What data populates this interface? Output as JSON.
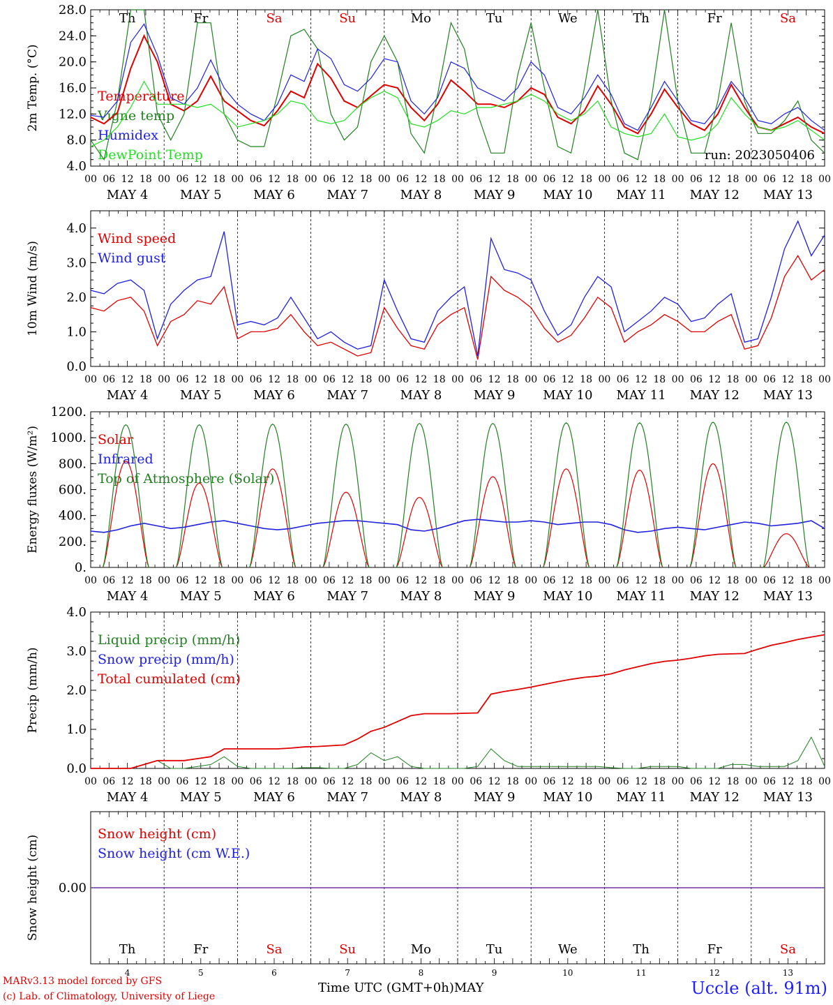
{
  "chart_data": [
    {
      "type": "line",
      "ylabel": "2m Temp. (°C)",
      "ylim": [
        4,
        28
      ],
      "yticks": [
        "4.0",
        "8.0",
        "12.0",
        "16.0",
        "20.0",
        "24.0",
        "28.0"
      ],
      "run_label": "run: 2023050406",
      "series": [
        {
          "name": "Temperature",
          "color": "#e00000",
          "values": [
            11.5,
            10.5,
            12.2,
            19.0,
            24.0,
            20.0,
            13.5,
            12.5,
            14.0,
            17.8,
            14.0,
            12.5,
            11.0,
            10.2,
            12.5,
            15.5,
            14.5,
            19.7,
            17.5,
            14.0,
            13.0,
            14.8,
            16.5,
            16.0,
            13.0,
            11.0,
            13.5,
            17.2,
            15.5,
            13.5,
            13.5,
            13.0,
            14.0,
            16.0,
            15.0,
            11.5,
            10.5,
            12.5,
            16.3,
            13.5,
            10.0,
            9.0,
            12.0,
            15.8,
            13.0,
            10.5,
            9.5,
            12.0,
            16.5,
            13.0,
            10.0,
            9.5,
            10.5,
            11.5,
            10.0,
            9.0
          ]
        },
        {
          "name": "Vigne temp",
          "color": "#208020",
          "values": [
            8.0,
            5.0,
            14.0,
            28.0,
            28.0,
            12.0,
            8.0,
            12.0,
            26.0,
            26.0,
            12.0,
            8.0,
            7.0,
            7.0,
            15.0,
            24.0,
            25.0,
            22.0,
            12.0,
            8.0,
            10.0,
            20.0,
            24.0,
            20.0,
            9.0,
            6.0,
            15.0,
            26.0,
            22.0,
            12.0,
            6.0,
            6.0,
            18.0,
            26.0,
            16.0,
            7.0,
            6.0,
            16.0,
            28.0,
            14.0,
            6.0,
            5.0,
            14.0,
            28.0,
            14.0,
            6.0,
            6.0,
            14.0,
            26.0,
            14.0,
            9.0,
            9.0,
            11.0,
            14.0,
            8.0,
            6.0
          ]
        },
        {
          "name": "Humidex",
          "color": "#2020e0",
          "values": [
            11.8,
            11.5,
            14.0,
            23.0,
            25.8,
            21.0,
            14.5,
            13.5,
            16.0,
            20.3,
            16.0,
            13.5,
            12.0,
            11.0,
            13.5,
            18.0,
            17.0,
            22.0,
            20.5,
            16.5,
            15.5,
            17.5,
            20.5,
            20.0,
            14.0,
            12.0,
            14.5,
            20.0,
            19.0,
            16.0,
            15.0,
            14.0,
            16.0,
            20.0,
            18.0,
            13.0,
            12.0,
            14.5,
            18.0,
            15.0,
            10.5,
            9.5,
            13.0,
            17.0,
            14.0,
            11.0,
            10.5,
            13.0,
            17.0,
            14.5,
            11.0,
            10.5,
            12.0,
            13.0,
            11.0,
            9.5
          ]
        },
        {
          "name": "DewPoint Temp",
          "color": "#20e020",
          "values": [
            7.0,
            8.0,
            10.0,
            13.0,
            17.0,
            13.5,
            13.5,
            13.5,
            13.0,
            13.5,
            12.0,
            10.0,
            10.5,
            11.0,
            12.0,
            14.0,
            13.5,
            11.0,
            10.5,
            11.0,
            13.0,
            14.5,
            15.5,
            14.5,
            10.5,
            10.0,
            11.0,
            12.5,
            12.0,
            13.0,
            13.0,
            13.5,
            14.0,
            15.0,
            14.0,
            12.0,
            11.0,
            12.0,
            14.0,
            10.0,
            9.0,
            8.5,
            9.0,
            12.0,
            8.5,
            8.0,
            8.5,
            10.5,
            14.5,
            12.0,
            10.0,
            9.5,
            10.0,
            11.0,
            9.5,
            8.0
          ]
        }
      ]
    },
    {
      "type": "line",
      "ylabel": "10m Wind (m/s)",
      "ylim": [
        0,
        4.5
      ],
      "yticks": [
        "0.0",
        "1.0",
        "2.0",
        "3.0",
        "4.0"
      ],
      "series": [
        {
          "name": "Wind speed",
          "color": "#e00000",
          "values": [
            1.7,
            1.6,
            1.9,
            2.0,
            1.6,
            0.6,
            1.3,
            1.5,
            1.9,
            1.8,
            2.3,
            0.8,
            1.0,
            1.0,
            1.1,
            1.5,
            1.0,
            0.6,
            0.7,
            0.5,
            0.3,
            0.4,
            1.7,
            1.1,
            0.6,
            0.5,
            1.2,
            1.5,
            1.7,
            0.2,
            2.6,
            2.2,
            2.0,
            1.7,
            1.1,
            0.7,
            0.9,
            1.4,
            2.0,
            1.7,
            0.7,
            1.0,
            1.2,
            1.5,
            1.3,
            1.0,
            1.0,
            1.3,
            1.5,
            0.5,
            0.6,
            1.4,
            2.6,
            3.2,
            2.5,
            2.8
          ]
        },
        {
          "name": "Wind gust",
          "color": "#2020e0",
          "values": [
            2.2,
            2.1,
            2.4,
            2.5,
            2.2,
            0.8,
            1.8,
            2.2,
            2.5,
            2.6,
            3.9,
            1.2,
            1.3,
            1.2,
            1.4,
            2.0,
            1.4,
            0.8,
            1.0,
            0.7,
            0.5,
            0.6,
            2.5,
            1.6,
            0.8,
            0.7,
            1.6,
            2.0,
            2.3,
            0.3,
            3.7,
            2.8,
            2.7,
            2.5,
            1.6,
            0.9,
            1.2,
            2.0,
            2.6,
            2.3,
            1.0,
            1.3,
            1.6,
            2.0,
            1.8,
            1.3,
            1.4,
            1.8,
            2.1,
            0.7,
            0.8,
            2.0,
            3.4,
            4.2,
            3.2,
            3.8
          ]
        }
      ]
    },
    {
      "type": "line",
      "ylabel": "Energy fluxes (W/m²)",
      "ylim": [
        0,
        1200
      ],
      "yticks": [
        "0.",
        "200.",
        "400.",
        "600.",
        "800.",
        "1000.",
        "1200."
      ],
      "series": [
        {
          "name": "Solar",
          "color": "#e00000",
          "peaks": [
            820,
            650,
            760,
            580,
            540,
            700,
            760,
            750,
            800,
            260
          ]
        },
        {
          "name": "Infrared",
          "color": "#2020e0",
          "values": [
            280,
            270,
            290,
            320,
            340,
            320,
            300,
            310,
            330,
            350,
            360,
            340,
            320,
            300,
            290,
            300,
            320,
            340,
            350,
            360,
            360,
            350,
            340,
            330,
            290,
            280,
            300,
            330,
            360,
            370,
            360,
            350,
            350,
            360,
            350,
            330,
            340,
            350,
            350,
            330,
            290,
            270,
            280,
            300,
            310,
            300,
            290,
            310,
            330,
            350,
            340,
            320,
            330,
            340,
            360,
            300
          ]
        },
        {
          "name": "Top of Atmosphere (Solar)",
          "color": "#208020",
          "peaks": [
            1100,
            1100,
            1105,
            1105,
            1110,
            1110,
            1115,
            1115,
            1120,
            1120
          ]
        }
      ]
    },
    {
      "type": "line",
      "ylabel": "Precip (mm/h)",
      "ylim": [
        0,
        4
      ],
      "yticks": [
        "0.0",
        "1.0",
        "2.0",
        "3.0",
        "4.0"
      ],
      "series": [
        {
          "name": "Liquid precip (mm/h)",
          "color": "#208020",
          "values": [
            0,
            0,
            0,
            0,
            0.1,
            0.2,
            0,
            0,
            0.05,
            0.1,
            0.3,
            0.05,
            0,
            0,
            0,
            0,
            0.02,
            0.02,
            0,
            0,
            0.1,
            0.4,
            0.2,
            0.3,
            0.05,
            0,
            0,
            0,
            0,
            0.05,
            0.5,
            0.2,
            0.05,
            0.05,
            0.05,
            0.05,
            0.05,
            0.05,
            0.05,
            0.02,
            0,
            0,
            0.05,
            0.05,
            0.05,
            0,
            0,
            0,
            0.1,
            0.1,
            0.05,
            0.05,
            0.05,
            0.2,
            0.8,
            0.05
          ]
        },
        {
          "name": "Snow precip (mm/h)",
          "color": "#2020e0",
          "values": []
        },
        {
          "name": "Total cumulated (cm)",
          "color": "#e00000",
          "values": [
            0,
            0,
            0,
            0,
            0.1,
            0.2,
            0.2,
            0.2,
            0.25,
            0.3,
            0.5,
            0.5,
            0.5,
            0.5,
            0.5,
            0.52,
            0.55,
            0.56,
            0.58,
            0.6,
            0.75,
            0.95,
            1.05,
            1.2,
            1.35,
            1.4,
            1.4,
            1.4,
            1.41,
            1.42,
            1.9,
            1.97,
            2.02,
            2.08,
            2.15,
            2.22,
            2.28,
            2.33,
            2.36,
            2.42,
            2.52,
            2.6,
            2.68,
            2.74,
            2.77,
            2.82,
            2.88,
            2.92,
            2.93,
            2.94,
            3.05,
            3.15,
            3.22,
            3.3,
            3.36,
            3.42
          ]
        }
      ]
    },
    {
      "type": "line",
      "ylabel": "Snow height (cm)",
      "yticks": [
        "0.00"
      ],
      "series": [
        {
          "name": "Snow height (cm)",
          "color": "#e00000",
          "values": [
            0,
            0
          ]
        },
        {
          "name": "Snow height (cm W.E.)",
          "color": "#2020e0",
          "values": [
            0,
            0
          ]
        }
      ]
    }
  ],
  "axes": {
    "hour_ticks": [
      "00",
      "06",
      "12",
      "18"
    ],
    "end_tick": "00",
    "dates": [
      "MAY  4",
      "MAY  5",
      "MAY  6",
      "MAY  7",
      "MAY  8",
      "MAY  9",
      "MAY 10",
      "MAY 11",
      "MAY 12",
      "MAY 13"
    ],
    "weekdays": [
      "Th",
      "Fr",
      "Sa",
      "Su",
      "Mo",
      "Tu",
      "We",
      "Th",
      "Fr",
      "Sa"
    ],
    "weekday_colors": [
      "#000000",
      "#000000",
      "#e00000",
      "#e00000",
      "#000000",
      "#000000",
      "#000000",
      "#000000",
      "#000000",
      "#e00000"
    ],
    "day_numbers": [
      "4",
      "5",
      "6",
      "7",
      "8",
      "9",
      "10",
      "11",
      "12",
      "13"
    ]
  },
  "footer": {
    "model_line": "MARv3.13 model forced by GFS",
    "lab_line": "(c) Lab. of Climatology, University of Liege",
    "x_title": "Time UTC (GMT+0h)MAY",
    "station": "Uccle (alt. 91m)"
  }
}
